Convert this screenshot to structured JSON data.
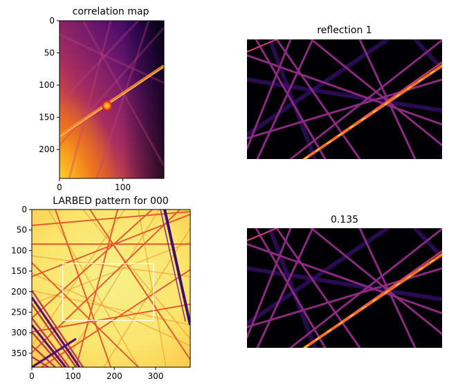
{
  "chart_data": [
    {
      "type": "heatmap",
      "title": "correlation map",
      "colormap": "inferno",
      "xlim": [
        0,
        165
      ],
      "ylim": [
        245,
        0
      ],
      "xticks": [
        "0",
        "100"
      ],
      "yticks": [
        "0",
        "50",
        "100",
        "150",
        "200"
      ],
      "marker": {
        "x": 75,
        "y": 132,
        "color": "#ff0000"
      }
    },
    {
      "type": "heatmap",
      "title": "reflection 1",
      "colormap": "inferno",
      "axes": "off"
    },
    {
      "type": "heatmap",
      "title": "LARBED pattern for 000",
      "colormap": "inferno",
      "xlim": [
        0,
        384
      ],
      "ylim": [
        384,
        0
      ],
      "xticks": [
        "0",
        "100",
        "200",
        "300"
      ],
      "yticks": [
        "0",
        "50",
        "100",
        "150",
        "200",
        "250",
        "300",
        "350"
      ],
      "rectangle": {
        "x0": 75,
        "y0": 132,
        "x1": 295,
        "y1": 270,
        "color": "#ffffff"
      }
    },
    {
      "type": "heatmap",
      "title": "0.135",
      "colormap": "inferno",
      "axes": "off"
    }
  ]
}
